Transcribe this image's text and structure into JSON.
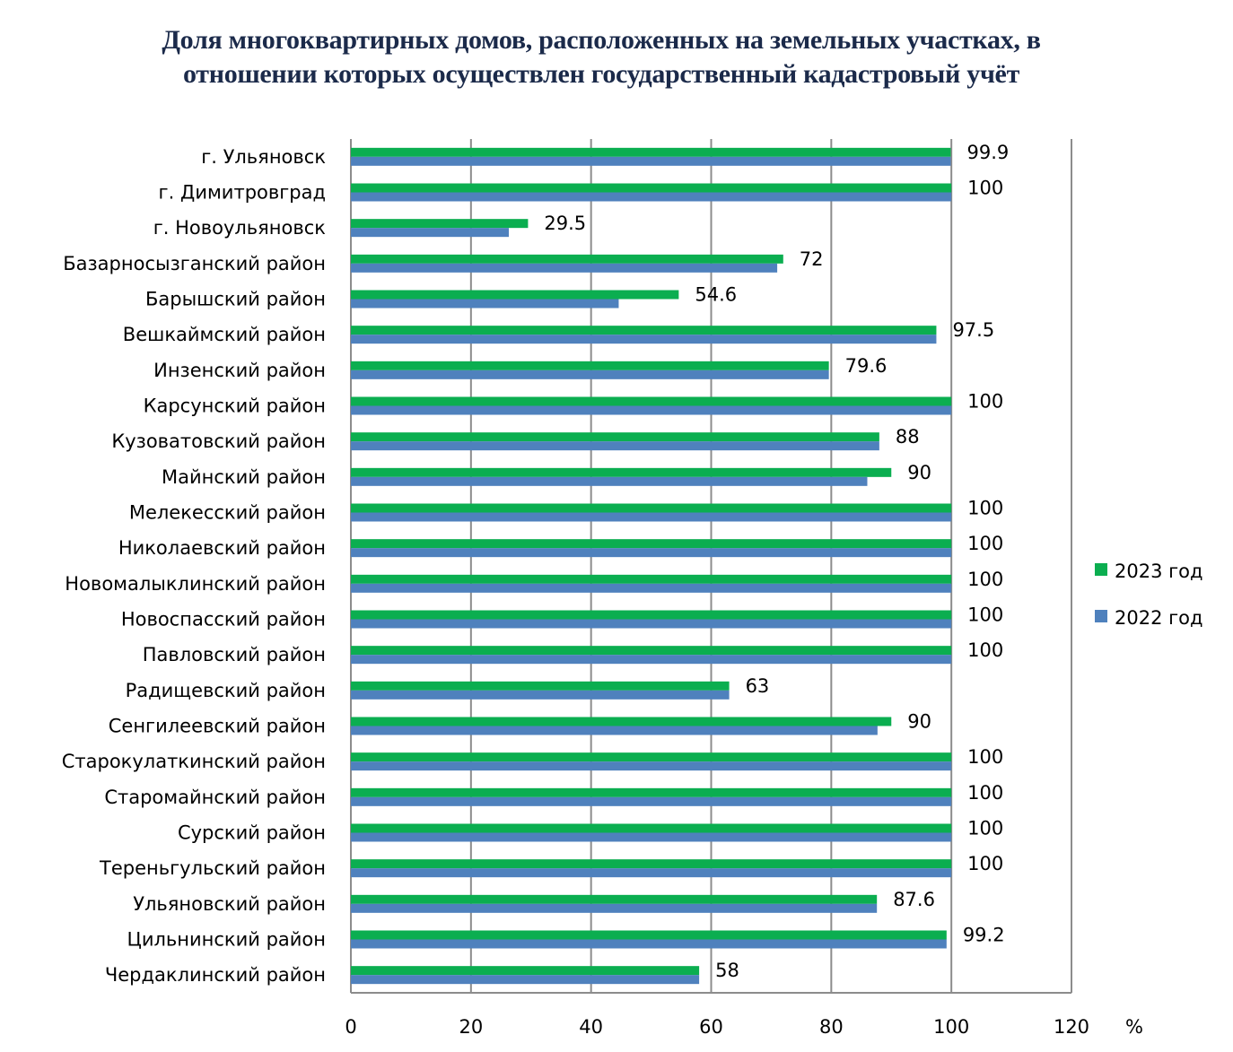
{
  "chart_data": {
    "type": "bar",
    "orientation": "horizontal",
    "title": "Доля многоквартирных домов, расположенных на земельных участках, в отношении которых осуществлен государственный кадастровый учёт",
    "xlabel": "%",
    "ylabel": "",
    "xlim": [
      0,
      120
    ],
    "xticks": [
      "0",
      "20",
      "40",
      "60",
      "80",
      "100",
      "120"
    ],
    "grid": true,
    "legend_position": "right",
    "categories": [
      "г. Ульяновск",
      "г. Димитровград",
      "г. Новоульяновск",
      "Базарносызганский район",
      "Барышский район",
      "Вешкаймский район",
      "Инзенский район",
      "Карсунский район",
      "Кузоватовский район",
      "Майнский район",
      "Мелекесский район",
      "Николаевский район",
      "Новомалыклинский район",
      "Новоспасский район",
      "Павловский район",
      "Радищевский район",
      "Сенгилеевский район",
      "Старокулаткинский район",
      "Старомайнский район",
      "Сурский район",
      "Тереньгульский район",
      "Ульяновский район",
      "Цильнинский район",
      "Чердаклинский район"
    ],
    "series": [
      {
        "name": "2023 год",
        "color": "#0bae50",
        "values": [
          99.9,
          100,
          29.5,
          72,
          54.6,
          97.5,
          79.6,
          100,
          88,
          90,
          100,
          100,
          100,
          100,
          100,
          63,
          90,
          100,
          100,
          100,
          100,
          87.6,
          99.2,
          58
        ],
        "labels": [
          "99.9",
          "100",
          "29.5",
          "72",
          "54.6",
          "97.5",
          "79.6",
          "100",
          "88",
          "90",
          "100",
          "100",
          "100",
          "100",
          "100",
          "63",
          "90",
          "100",
          "100",
          "100",
          "100",
          "87.6",
          "99.2",
          "58"
        ]
      },
      {
        "name": "2022 год",
        "color": "#4f81bd",
        "values": [
          99.9,
          100,
          26.3,
          71,
          44.6,
          97.5,
          79.6,
          100,
          88,
          86,
          100,
          100,
          100,
          100,
          100,
          63,
          87.7,
          100,
          100,
          100,
          100,
          87.6,
          99.2,
          58
        ]
      }
    ]
  }
}
